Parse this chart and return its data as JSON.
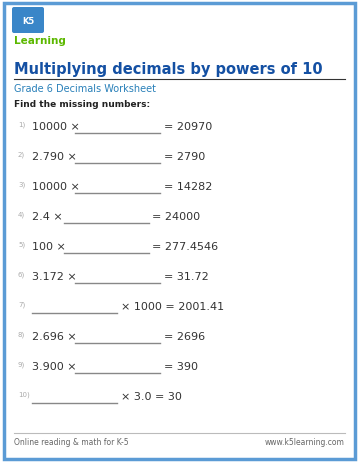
{
  "title": "Multiplying decimals by powers of 10",
  "subtitle": "Grade 6 Decimals Worksheet",
  "instruction": "Find the missing numbers:",
  "problems": [
    {
      "num": "1)",
      "left": "10000 ×",
      "blank": true,
      "right": "= 20970"
    },
    {
      "num": "2)",
      "left": "2.790 ×",
      "blank": true,
      "right": "= 2790"
    },
    {
      "num": "3)",
      "left": "10000 ×",
      "blank": true,
      "right": "= 14282"
    },
    {
      "num": "4)",
      "left": "2.4 ×",
      "blank": true,
      "right": "= 24000"
    },
    {
      "num": "5)",
      "left": "100 ×",
      "blank": true,
      "right": "= 277.4546"
    },
    {
      "num": "6)",
      "left": "3.172 ×",
      "blank": true,
      "right": "= 31.72"
    },
    {
      "num": "7)",
      "left": "",
      "blank": true,
      "right": "× 1000 = 2001.41"
    },
    {
      "num": "8)",
      "left": "2.696 ×",
      "blank": true,
      "right": "= 2696"
    },
    {
      "num": "9)",
      "left": "3.900 ×",
      "blank": true,
      "right": "= 390"
    },
    {
      "num": "10)",
      "left": "",
      "blank": true,
      "right": "× 3.0 = 30"
    }
  ],
  "footer_left": "Online reading & math for K-5",
  "footer_right": "www.k5learning.com",
  "title_color": "#1450a3",
  "subtitle_color": "#2980b9",
  "border_color": "#5b9bd5",
  "bg_color": "#ffffff",
  "num_color": "#aaaaaa",
  "eq_color": "#333333",
  "instruction_color": "#222222",
  "footer_color": "#666666",
  "line_color": "#aaaaaa",
  "blank_color": "#888888"
}
